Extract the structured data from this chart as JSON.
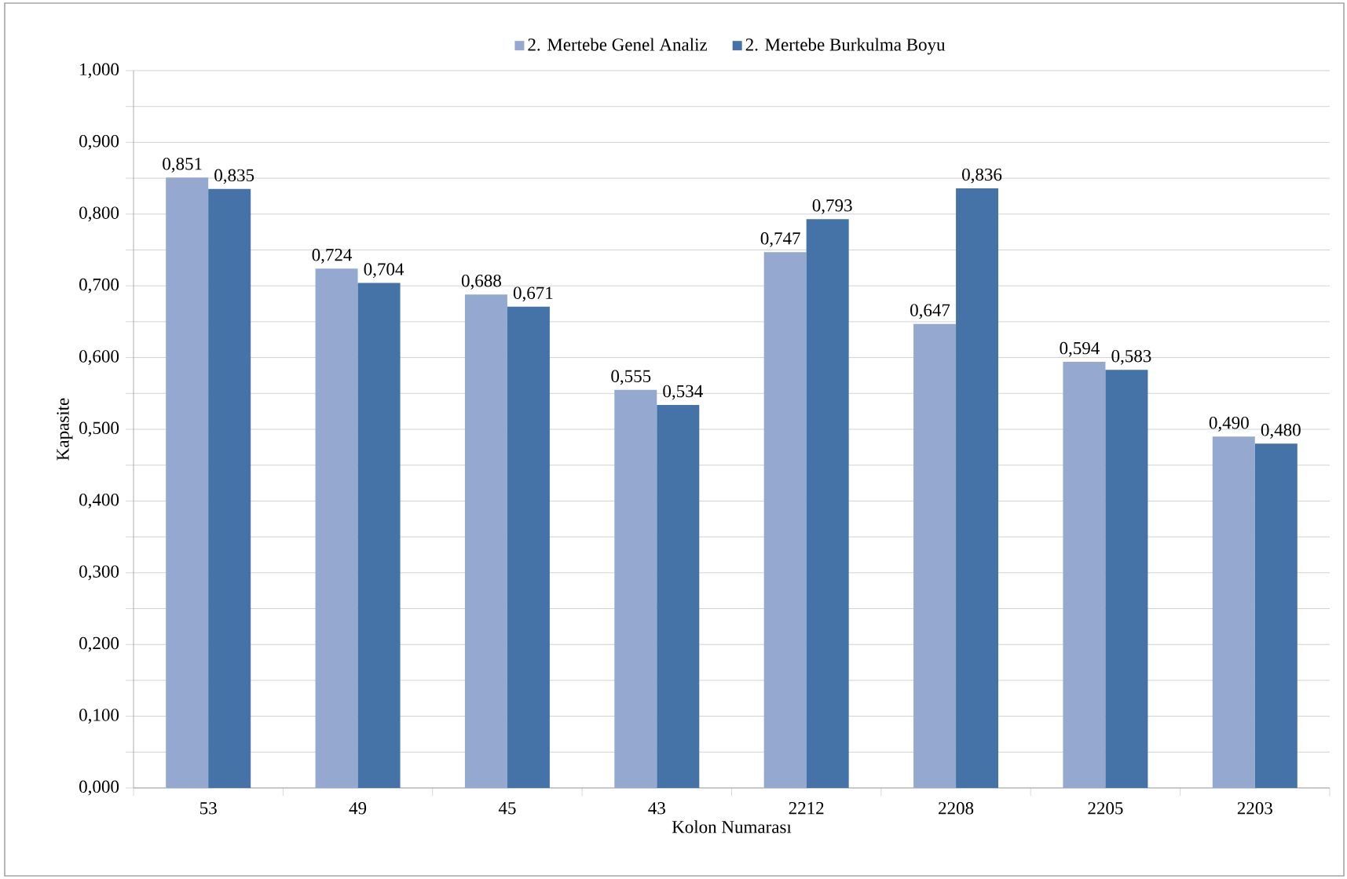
{
  "chart_data": {
    "type": "bar",
    "xlabel": "Kolon Numarası",
    "ylabel": "Kapasite",
    "categories": [
      "53",
      "49",
      "45",
      "43",
      "2212",
      "2208",
      "2205",
      "2203"
    ],
    "series": [
      {
        "name": "2. Mertebe Genel Analiz",
        "color": "#95a9d0",
        "values": [
          0.851,
          0.724,
          0.688,
          0.555,
          0.747,
          0.647,
          0.594,
          0.49
        ],
        "value_labels": [
          "0,851",
          "0,724",
          "0,688",
          "0,555",
          "0,747",
          "0,647",
          "0,594",
          "0,490"
        ]
      },
      {
        "name": "2. Mertebe Burkulma Boyu",
        "color": "#4573a8",
        "values": [
          0.835,
          0.704,
          0.671,
          0.534,
          0.793,
          0.836,
          0.583,
          0.48
        ],
        "value_labels": [
          "0,835",
          "0,704",
          "0,671",
          "0,534",
          "0,793",
          "0,836",
          "0,583",
          "0,480"
        ]
      }
    ],
    "ylim": [
      0,
      1
    ],
    "yticks": [
      {
        "value": 0,
        "label": "0,000"
      },
      {
        "value": 0.05,
        "label": null
      },
      {
        "value": 0.1,
        "label": "0,100"
      },
      {
        "value": 0.15,
        "label": null
      },
      {
        "value": 0.2,
        "label": "0,200"
      },
      {
        "value": 0.25,
        "label": null
      },
      {
        "value": 0.3,
        "label": "0,300"
      },
      {
        "value": 0.35,
        "label": null
      },
      {
        "value": 0.4,
        "label": "0,400"
      },
      {
        "value": 0.45,
        "label": null
      },
      {
        "value": 0.5,
        "label": "0,500"
      },
      {
        "value": 0.55,
        "label": null
      },
      {
        "value": 0.6,
        "label": "0,600"
      },
      {
        "value": 0.65,
        "label": null
      },
      {
        "value": 0.7,
        "label": "0,700"
      },
      {
        "value": 0.75,
        "label": null
      },
      {
        "value": 0.8,
        "label": "0,800"
      },
      {
        "value": 0.85,
        "label": null
      },
      {
        "value": 0.9,
        "label": "0,900"
      },
      {
        "value": 0.95,
        "label": null
      },
      {
        "value": 1,
        "label": "1,000"
      }
    ],
    "grid": "y",
    "legend": "top"
  }
}
